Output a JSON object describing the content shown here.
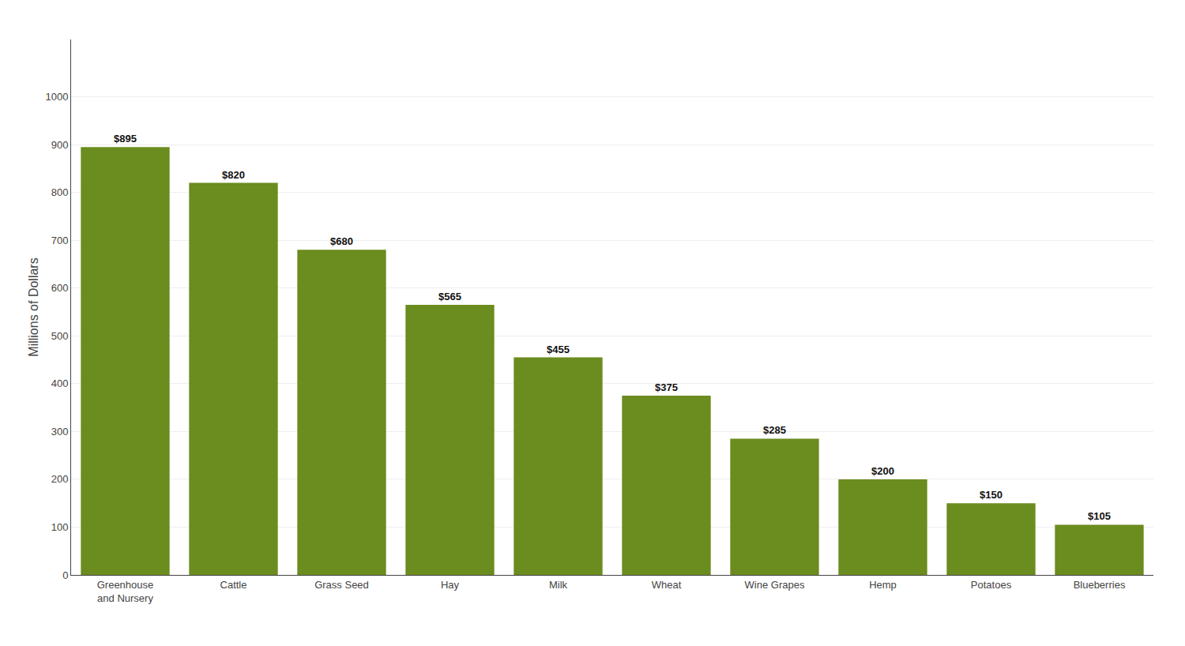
{
  "chart_data": {
    "type": "bar",
    "categories": [
      "Greenhouse\nand Nursery",
      "Cattle",
      "Grass Seed",
      "Hay",
      "Milk",
      "Wheat",
      "Wine Grapes",
      "Hemp",
      "Potatoes",
      "Blueberries"
    ],
    "values": [
      895,
      820,
      680,
      565,
      455,
      375,
      285,
      200,
      150,
      105
    ],
    "value_labels": [
      "$895",
      "$820",
      "$680",
      "$565",
      "$455",
      "$375",
      "$285",
      "$200",
      "$150",
      "$105"
    ],
    "color": "#6b8c1e",
    "ylabel": "Millions of Dollars",
    "ylim": [
      0,
      1120
    ],
    "yticks": [
      0,
      100,
      200,
      300,
      400,
      500,
      600,
      700,
      800,
      900,
      1000
    ],
    "grid": true,
    "data_labels": true
  }
}
